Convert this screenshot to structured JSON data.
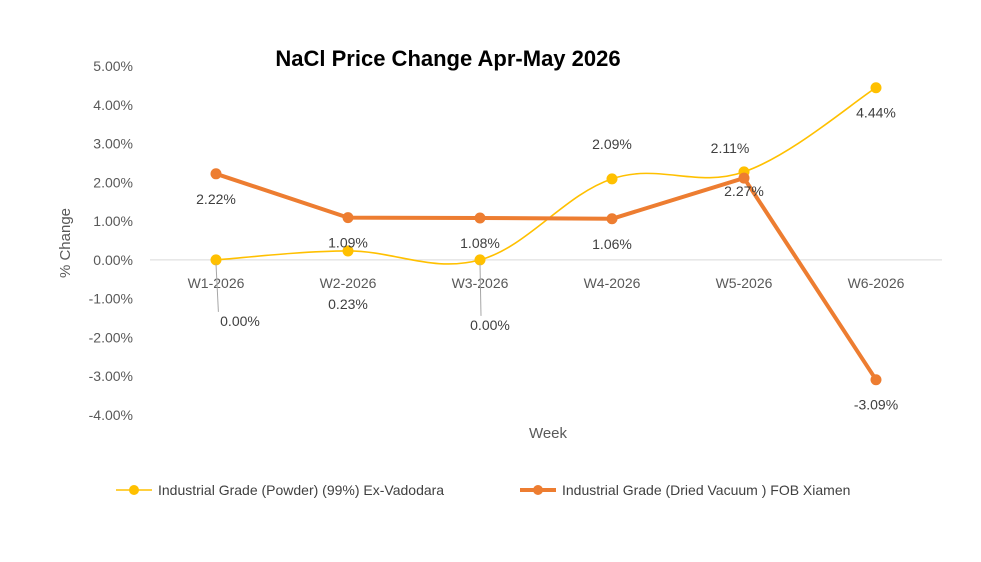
{
  "chart_data": {
    "type": "line",
    "title": "NaCl Price Change Apr-May 2026",
    "xlabel": "Week",
    "ylabel": "% Change",
    "categories": [
      "W1-2026",
      "W2-2026",
      "W3-2026",
      "W4-2026",
      "W5-2026",
      "W6-2026"
    ],
    "ylim": [
      -4,
      5
    ],
    "yticks": [
      "5.00%",
      "4.00%",
      "3.00%",
      "2.00%",
      "1.00%",
      "0.00%",
      "-1.00%",
      "-2.00%",
      "-3.00%",
      "-4.00%"
    ],
    "grid": false,
    "legend_position": "bottom",
    "series": [
      {
        "name": "Industrial Grade (Powder) (99%) Ex-Vadodara",
        "color": "#FFC000",
        "smooth": true,
        "values": [
          0.0,
          0.23,
          0.0,
          2.09,
          2.27,
          4.44
        ],
        "labels": [
          "0.00%",
          "0.23%",
          "0.00%",
          "2.09%",
          "2.27%",
          "4.44%"
        ]
      },
      {
        "name": "Industrial Grade (Dried Vacuum ) FOB Xiamen",
        "color": "#ED7D31",
        "smooth": false,
        "values": [
          2.22,
          1.09,
          1.08,
          1.06,
          2.11,
          -3.09
        ],
        "labels": [
          "2.22%",
          "1.09%",
          "1.08%",
          "1.06%",
          "2.11%",
          "-3.09%"
        ]
      }
    ]
  }
}
